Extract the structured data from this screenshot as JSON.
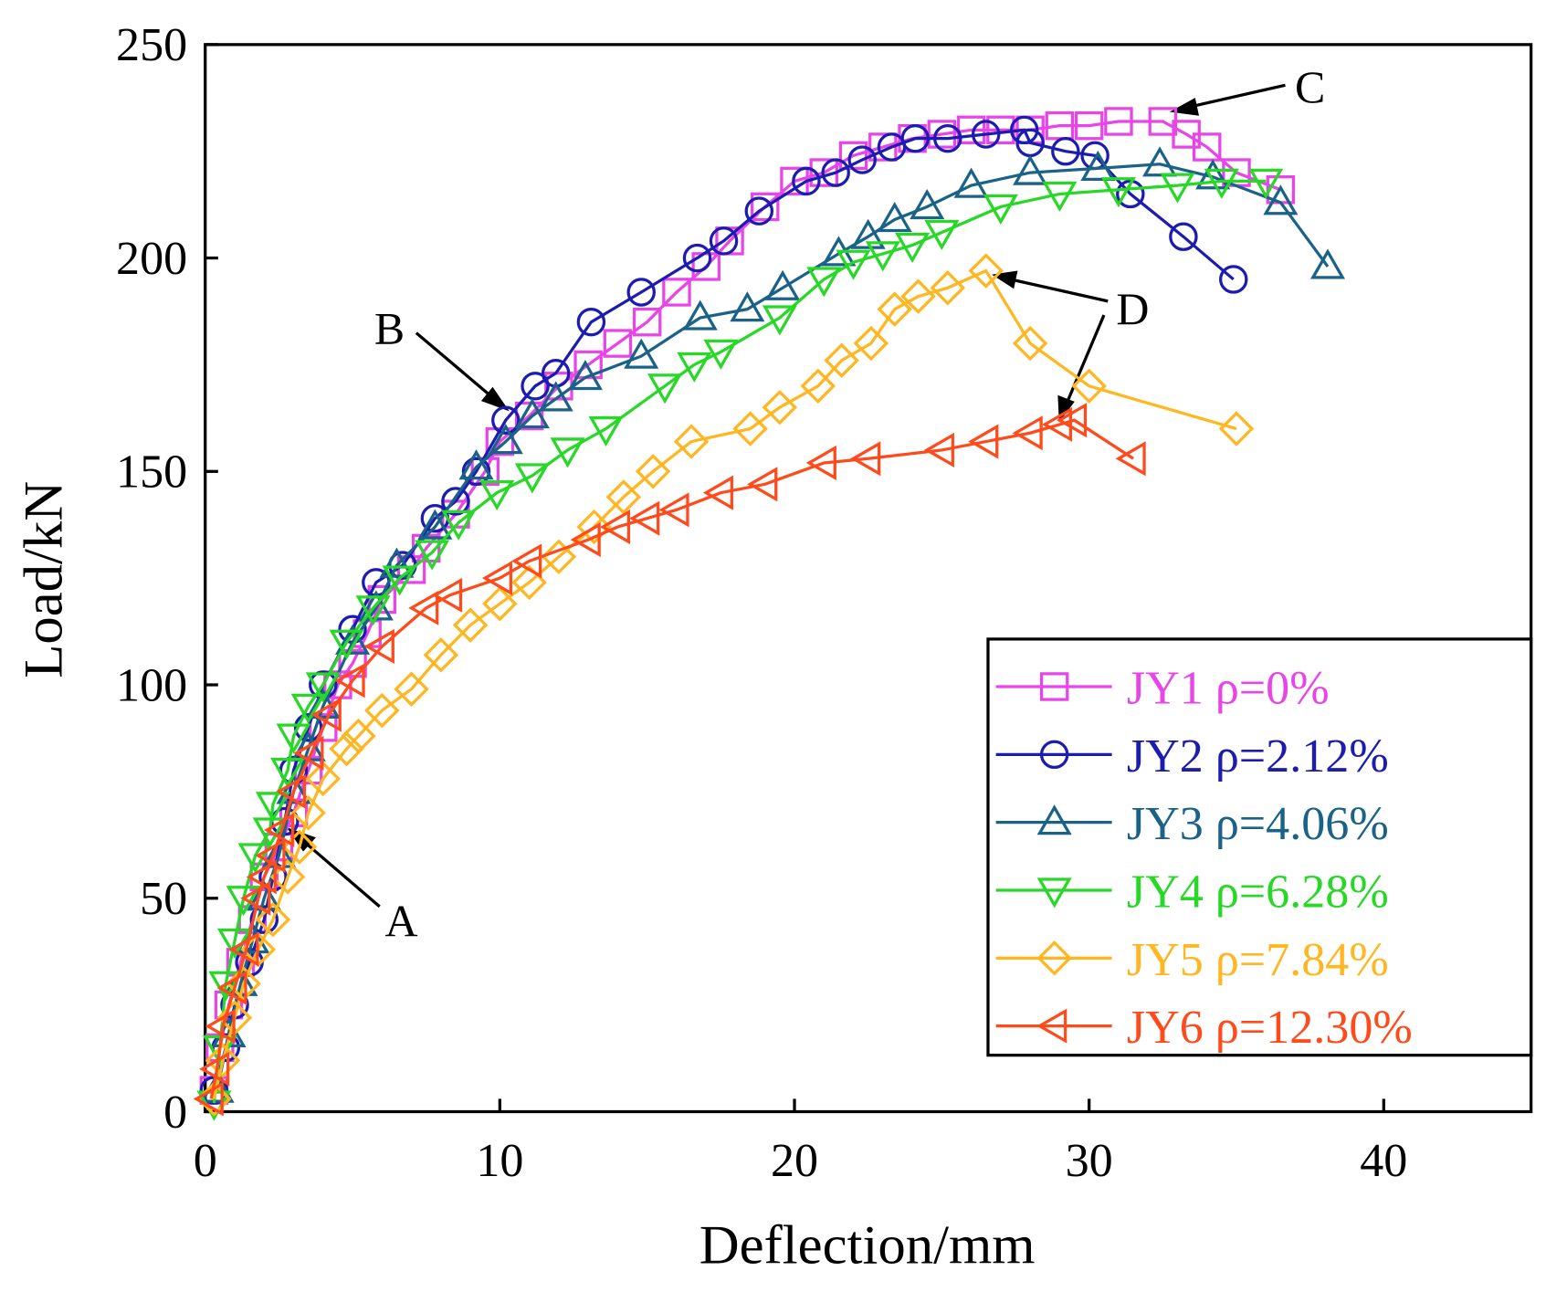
{
  "chart_data": {
    "type": "line",
    "xlabel": "Deflection/mm",
    "ylabel": "Load/kN",
    "xlim": [
      0,
      45
    ],
    "ylim": [
      0,
      250
    ],
    "xticks": [
      0,
      10,
      20,
      30,
      40
    ],
    "yticks": [
      0,
      50,
      100,
      150,
      200,
      250
    ],
    "legend": "lower right",
    "annotations": [
      "A",
      "B",
      "C",
      "D"
    ],
    "series": [
      {
        "name": "JY1 ρ=0%",
        "color": "#e845e8",
        "marker": "square",
        "x": [
          0.3,
          0.5,
          0.8,
          1.2,
          1.6,
          2.0,
          2.5,
          3.0,
          3.5,
          4.0,
          4.5,
          5.0,
          5.5,
          6.0,
          7.0,
          7.5,
          8.5,
          9.5,
          10.0,
          11.0,
          12.0,
          13.0,
          14.0,
          15.0,
          16.0,
          17.0,
          17.8,
          19.0,
          20.0,
          21.0,
          22.0,
          23.0,
          24.0,
          25.0,
          26.0,
          27.0,
          28.0,
          29.0,
          30.0,
          31.0,
          32.5,
          33.3,
          34.0,
          35.0,
          36.5
        ],
        "values": [
          5,
          15,
          25,
          35,
          45,
          55,
          62,
          70,
          80,
          90,
          100,
          105,
          112,
          120,
          127,
          132,
          140,
          150,
          157,
          163,
          170,
          175,
          180,
          185,
          192,
          198,
          204,
          212,
          218,
          220,
          224,
          226,
          228,
          229,
          230,
          230,
          230,
          231,
          231,
          232,
          232,
          229,
          226,
          220,
          216
        ]
      },
      {
        "name": "JY2 ρ=2.12%",
        "color": "#1c1cb0",
        "marker": "circle",
        "x": [
          0.3,
          0.7,
          1.0,
          1.5,
          2.0,
          2.3,
          2.7,
          3.0,
          3.5,
          4.0,
          5.0,
          5.8,
          6.7,
          7.8,
          8.5,
          9.2,
          10.2,
          11.2,
          11.9,
          13.1,
          14.8,
          16.7,
          17.6,
          18.8,
          20.4,
          21.4,
          22.3,
          23.3,
          24.1,
          25.2,
          26.5,
          27.8,
          28.0,
          29.2,
          30.2,
          31.4,
          33.2,
          34.9
        ],
        "values": [
          5,
          15,
          25,
          35,
          45,
          55,
          68,
          80,
          90,
          100,
          113,
          124,
          128,
          139,
          143,
          150,
          162,
          170,
          173,
          185,
          192,
          200,
          204,
          211,
          218,
          220,
          223,
          226,
          228,
          228,
          229,
          230,
          227,
          225,
          224,
          215,
          205,
          195
        ]
      },
      {
        "name": "JY3 ρ=4.06%",
        "color": "#1b6288",
        "marker": "triangle-up",
        "x": [
          0.4,
          0.8,
          1.2,
          1.6,
          2.0,
          2.5,
          3.0,
          3.5,
          4.0,
          5.0,
          5.8,
          6.5,
          7.8,
          9.2,
          10.2,
          11.1,
          11.9,
          12.9,
          14.8,
          16.8,
          18.4,
          19.6,
          21.5,
          22.5,
          23.4,
          24.5,
          26.0,
          28.0,
          30.3,
          32.4,
          34.2,
          36.5,
          38.1
        ],
        "values": [
          5,
          18,
          30,
          40,
          50,
          60,
          75,
          85,
          95,
          110,
          118,
          128,
          137,
          151,
          157,
          163,
          167,
          172,
          177,
          186,
          188,
          193,
          201,
          205,
          209,
          212,
          217,
          220,
          221,
          222,
          219,
          213,
          198
        ]
      },
      {
        "name": "JY4 ρ=6.28%",
        "color": "#27d827",
        "marker": "triangle-down",
        "x": [
          0.3,
          0.5,
          0.7,
          1.0,
          1.3,
          1.7,
          2.2,
          2.3,
          2.8,
          3.0,
          3.5,
          4.0,
          4.8,
          5.7,
          6.6,
          7.7,
          8.6,
          9.9,
          11.1,
          12.3,
          13.6,
          15.6,
          16.6,
          17.5,
          19.5,
          21.0,
          22.0,
          23.0,
          24.0,
          25.0,
          27.0,
          29.0,
          31.0,
          33.0,
          34.5,
          36.0
        ],
        "values": [
          2,
          15,
          30,
          40,
          50,
          60,
          66,
          72,
          80,
          88,
          95,
          100,
          110,
          118,
          125,
          131,
          138,
          145,
          149,
          155,
          160,
          170,
          175,
          178,
          186,
          195,
          199,
          201,
          203,
          206,
          212,
          215,
          216,
          217,
          218,
          218
        ]
      },
      {
        "name": "JY5 ρ=7.84%",
        "color": "#ffb620",
        "marker": "diamond",
        "x": [
          0.3,
          0.6,
          1.0,
          1.3,
          1.8,
          2.3,
          2.8,
          3.2,
          3.5,
          4.0,
          4.8,
          5.2,
          6.0,
          7.0,
          8.0,
          9.0,
          10.0,
          11.0,
          12.0,
          13.2,
          14.2,
          15.2,
          16.5,
          18.5,
          19.5,
          20.8,
          21.6,
          22.6,
          23.4,
          24.2,
          25.2,
          26.5,
          28.0,
          30.0,
          35.0
        ],
        "values": [
          3,
          12,
          22,
          30,
          38,
          45,
          55,
          62,
          70,
          78,
          85,
          88,
          94,
          99,
          107,
          114,
          119,
          124,
          130,
          137,
          144,
          150,
          157,
          160,
          165,
          170,
          176,
          180,
          188,
          191,
          193,
          197,
          180,
          170,
          160
        ]
      },
      {
        "name": "JY6 ρ=12.30%",
        "color": "#ff4a1c",
        "marker": "triangle-left",
        "x": [
          0.2,
          0.4,
          0.6,
          1.0,
          1.4,
          1.8,
          2.0,
          2.3,
          2.6,
          3.0,
          3.6,
          4.2,
          5.0,
          6.0,
          7.5,
          8.3,
          10.0,
          11.0,
          13.0,
          14.0,
          15.0,
          16.0,
          17.5,
          19.0,
          21.0,
          22.5,
          25.0,
          26.5,
          28.0,
          29.0,
          29.5,
          31.5
        ],
        "values": [
          3,
          10,
          20,
          29,
          38,
          50,
          55,
          60,
          66,
          75,
          84,
          93,
          101,
          109,
          118,
          121,
          125,
          129,
          134,
          137,
          139,
          141,
          145,
          147,
          152,
          153,
          155,
          157,
          159,
          161,
          162,
          153
        ]
      }
    ]
  }
}
